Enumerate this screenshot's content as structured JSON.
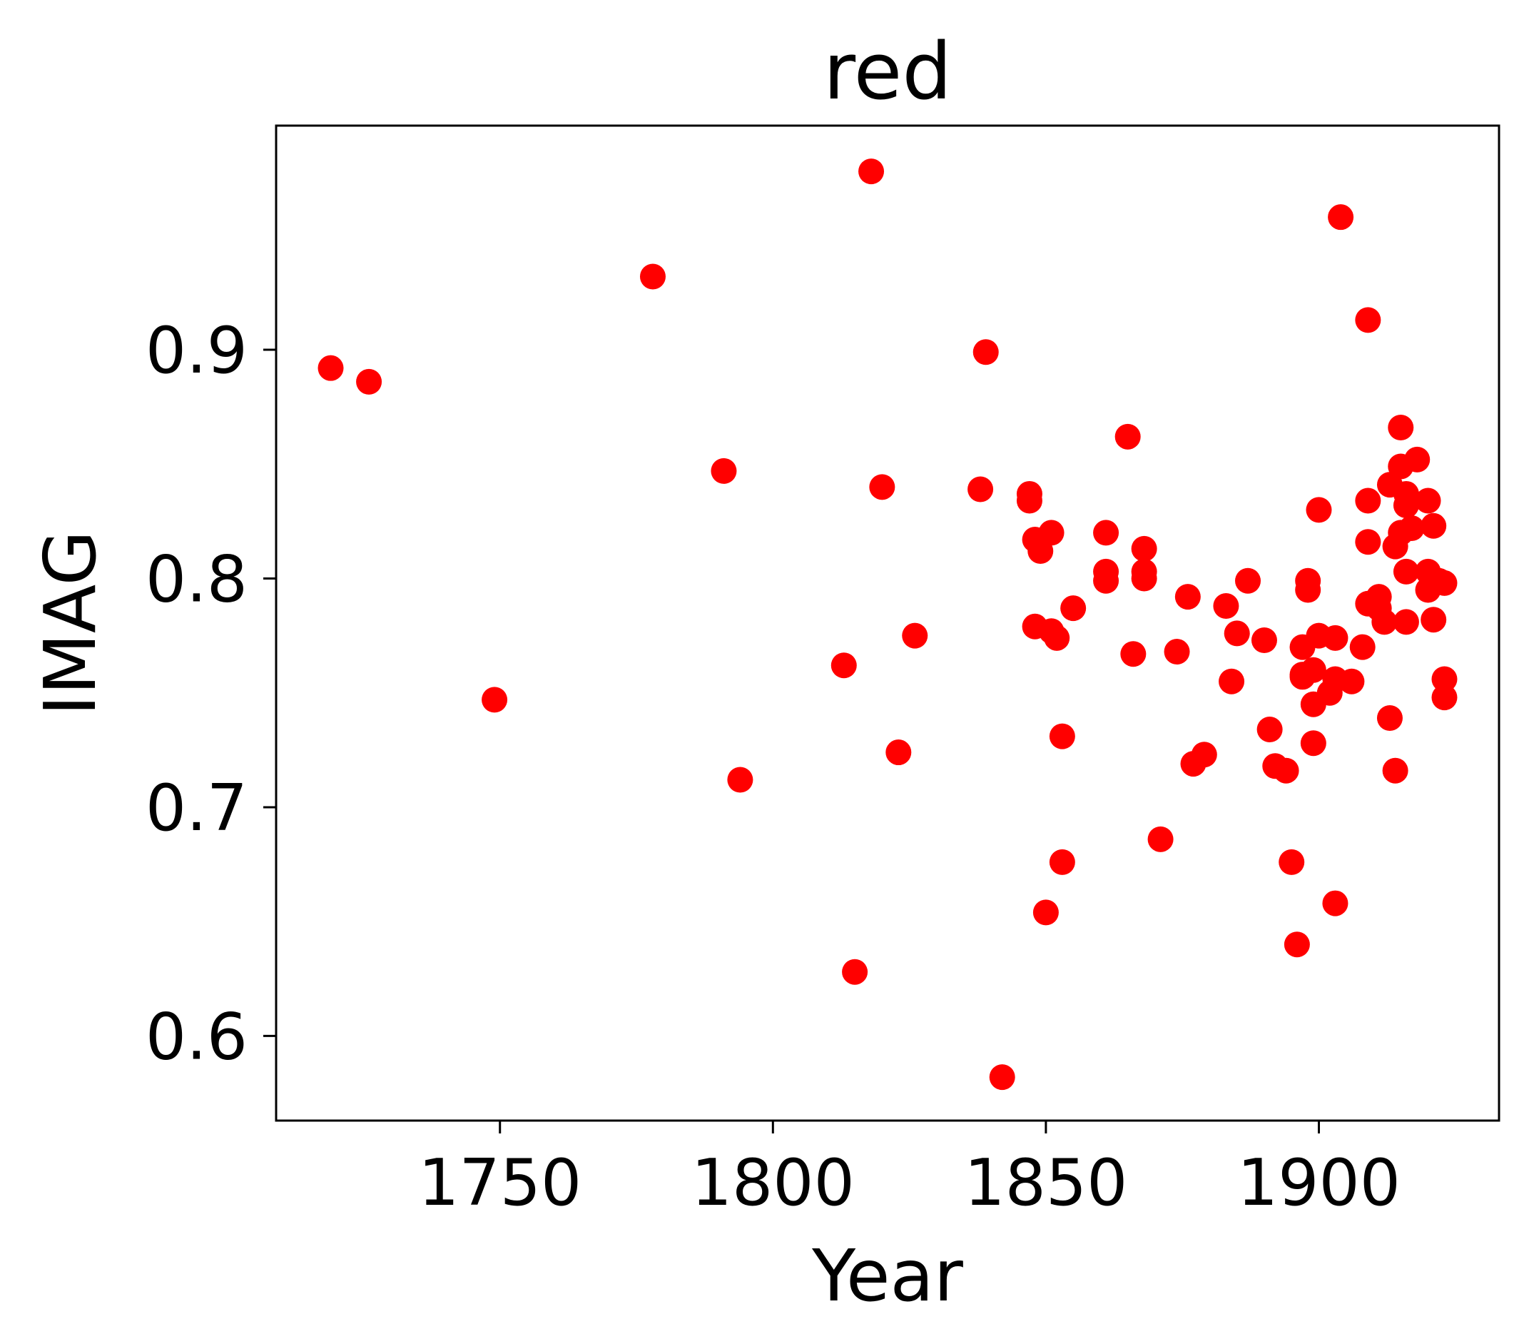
{
  "chart_data": {
    "type": "scatter",
    "title": "red",
    "xlabel": "Year",
    "ylabel": "IMAG",
    "xlim": [
      1709,
      1933
    ],
    "ylim": [
      0.563,
      0.998
    ],
    "x_ticks": [
      1750,
      1800,
      1850,
      1900
    ],
    "x_tick_labels": [
      "1750",
      "1800",
      "1850",
      "1900"
    ],
    "y_ticks": [
      0.6,
      0.7,
      0.8,
      0.9
    ],
    "y_tick_labels": [
      "0.6",
      "0.7",
      "0.8",
      "0.9"
    ],
    "grid": false,
    "legend": "none",
    "marker_color": "#ff0000",
    "series": [
      {
        "points": [
          [
            1719,
            0.892
          ],
          [
            1726,
            0.886
          ],
          [
            1749,
            0.747
          ],
          [
            1778,
            0.932
          ],
          [
            1791,
            0.847
          ],
          [
            1794,
            0.712
          ],
          [
            1813,
            0.762
          ],
          [
            1815,
            0.628
          ],
          [
            1818,
            0.978
          ],
          [
            1820,
            0.84
          ],
          [
            1823,
            0.724
          ],
          [
            1826,
            0.775
          ],
          [
            1838,
            0.839
          ],
          [
            1839,
            0.899
          ],
          [
            1842,
            0.582
          ],
          [
            1847,
            0.837
          ],
          [
            1847,
            0.834
          ],
          [
            1848,
            0.817
          ],
          [
            1848,
            0.779
          ],
          [
            1849,
            0.812
          ],
          [
            1850,
            0.654
          ],
          [
            1851,
            0.82
          ],
          [
            1851,
            0.777
          ],
          [
            1852,
            0.774
          ],
          [
            1853,
            0.676
          ],
          [
            1853,
            0.731
          ],
          [
            1855,
            0.787
          ],
          [
            1861,
            0.82
          ],
          [
            1861,
            0.803
          ],
          [
            1861,
            0.799
          ],
          [
            1865,
            0.862
          ],
          [
            1866,
            0.767
          ],
          [
            1868,
            0.813
          ],
          [
            1868,
            0.803
          ],
          [
            1868,
            0.8
          ],
          [
            1871,
            0.686
          ],
          [
            1874,
            0.768
          ],
          [
            1876,
            0.792
          ],
          [
            1877,
            0.719
          ],
          [
            1879,
            0.723
          ],
          [
            1883,
            0.788
          ],
          [
            1884,
            0.755
          ],
          [
            1885,
            0.776
          ],
          [
            1887,
            0.799
          ],
          [
            1890,
            0.773
          ],
          [
            1891,
            0.734
          ],
          [
            1892,
            0.718
          ],
          [
            1894,
            0.716
          ],
          [
            1895,
            0.676
          ],
          [
            1896,
            0.64
          ],
          [
            1897,
            0.77
          ],
          [
            1897,
            0.758
          ],
          [
            1897,
            0.757
          ],
          [
            1898,
            0.799
          ],
          [
            1898,
            0.795
          ],
          [
            1899,
            0.76
          ],
          [
            1899,
            0.745
          ],
          [
            1899,
            0.728
          ],
          [
            1900,
            0.83
          ],
          [
            1900,
            0.775
          ],
          [
            1902,
            0.75
          ],
          [
            1903,
            0.658
          ],
          [
            1903,
            0.774
          ],
          [
            1903,
            0.756
          ],
          [
            1904,
            0.958
          ],
          [
            1906,
            0.755
          ],
          [
            1908,
            0.77
          ],
          [
            1909,
            0.834
          ],
          [
            1909,
            0.816
          ],
          [
            1909,
            0.789
          ],
          [
            1909,
            0.913
          ],
          [
            1911,
            0.792
          ],
          [
            1911,
            0.787
          ],
          [
            1912,
            0.781
          ],
          [
            1913,
            0.841
          ],
          [
            1913,
            0.739
          ],
          [
            1914,
            0.814
          ],
          [
            1914,
            0.716
          ],
          [
            1915,
            0.866
          ],
          [
            1915,
            0.849
          ],
          [
            1915,
            0.82
          ],
          [
            1916,
            0.837
          ],
          [
            1916,
            0.832
          ],
          [
            1916,
            0.803
          ],
          [
            1916,
            0.781
          ],
          [
            1917,
            0.822
          ],
          [
            1918,
            0.852
          ],
          [
            1920,
            0.834
          ],
          [
            1920,
            0.803
          ],
          [
            1920,
            0.795
          ],
          [
            1921,
            0.823
          ],
          [
            1921,
            0.782
          ],
          [
            1922,
            0.799
          ],
          [
            1923,
            0.798
          ],
          [
            1923,
            0.756
          ],
          [
            1923,
            0.748
          ]
        ]
      }
    ]
  }
}
